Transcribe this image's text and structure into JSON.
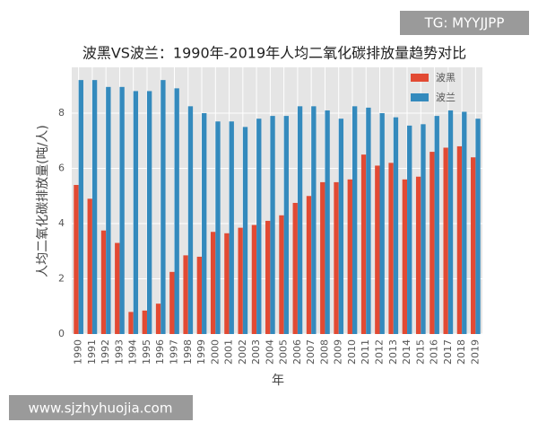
{
  "chart_data": {
    "type": "bar",
    "title": "波黑VS波兰：1990年-2019年人均二氧化碳排放量趋势对比",
    "x_label": "年",
    "y_label": "人均二氧化碳排放量(吨/人)",
    "annotations": [
      "TG: MYYJJPP",
      "www.sjzhyhuojia.com"
    ],
    "categories": [
      "1990",
      "1991",
      "1992",
      "1993",
      "1994",
      "1995",
      "1996",
      "1997",
      "1998",
      "1999",
      "2000",
      "2001",
      "2002",
      "2003",
      "2004",
      "2005",
      "2006",
      "2007",
      "2008",
      "2009",
      "2010",
      "2011",
      "2012",
      "2013",
      "2014",
      "2015",
      "2016",
      "2017",
      "2018",
      "2019"
    ],
    "series": [
      {
        "name": "波黑",
        "color": "#E24A33",
        "values": [
          5.4,
          4.9,
          3.75,
          3.3,
          0.8,
          0.85,
          1.1,
          2.25,
          2.85,
          2.8,
          3.7,
          3.65,
          3.85,
          3.95,
          4.1,
          4.3,
          4.75,
          5.0,
          5.5,
          5.5,
          5.6,
          6.5,
          6.1,
          6.2,
          5.6,
          5.7,
          6.6,
          6.75,
          6.8,
          6.4
        ]
      },
      {
        "name": "波兰",
        "color": "#348ABD",
        "values": [
          9.2,
          9.2,
          8.95,
          8.95,
          8.8,
          8.8,
          9.2,
          8.9,
          8.25,
          8.0,
          7.7,
          7.7,
          7.5,
          7.8,
          7.9,
          7.9,
          8.25,
          8.25,
          8.1,
          7.8,
          8.25,
          8.2,
          8.0,
          7.85,
          7.55,
          7.6,
          7.9,
          8.1,
          8.05,
          7.8
        ]
      }
    ],
    "ylim": [
      0,
      9.66
    ],
    "yticks": [
      0,
      2,
      4,
      6,
      8
    ],
    "grid": true,
    "legend": "upper right"
  }
}
